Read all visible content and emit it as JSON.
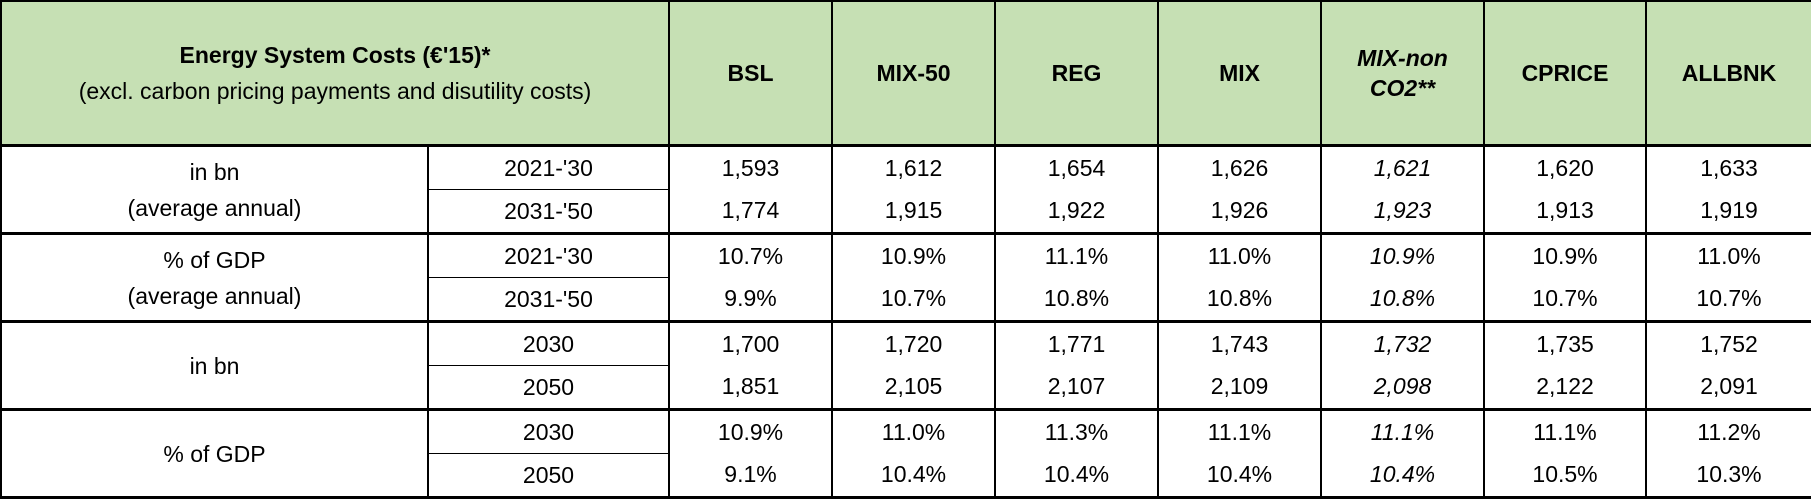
{
  "header": {
    "title_line1": "Energy System Costs (€'15)*",
    "title_line2": "(excl. carbon pricing payments  and disutility costs)",
    "scenarios": [
      "BSL",
      "MIX-50",
      "REG",
      "MIX",
      "MIX-nonCO2**",
      "CPRICE",
      "ALLBNK"
    ]
  },
  "groups": [
    {
      "label_line1": "in bn",
      "label_line2": "(average annual)",
      "rows": [
        {
          "period": "2021-'30",
          "values": [
            "1,593",
            "1,612",
            "1,654",
            "1,626",
            "1,621",
            "1,620",
            "1,633"
          ]
        },
        {
          "period": "2031-'50",
          "values": [
            "1,774",
            "1,915",
            "1,922",
            "1,926",
            "1,923",
            "1,913",
            "1,919"
          ]
        }
      ]
    },
    {
      "label_line1": "% of GDP",
      "label_line2": "(average annual)",
      "rows": [
        {
          "period": "2021-'30",
          "values": [
            "10.7%",
            "10.9%",
            "11.1%",
            "11.0%",
            "10.9%",
            "10.9%",
            "11.0%"
          ]
        },
        {
          "period": "2031-'50",
          "values": [
            "9.9%",
            "10.7%",
            "10.8%",
            "10.8%",
            "10.8%",
            "10.7%",
            "10.7%"
          ]
        }
      ]
    },
    {
      "label_line1": "in bn",
      "label_line2": "",
      "rows": [
        {
          "period": "2030",
          "values": [
            "1,700",
            "1,720",
            "1,771",
            "1,743",
            "1,732",
            "1,735",
            "1,752"
          ]
        },
        {
          "period": "2050",
          "values": [
            "1,851",
            "2,105",
            "2,107",
            "2,109",
            "2,098",
            "2,122",
            "2,091"
          ]
        }
      ]
    },
    {
      "label_line1": "% of GDP",
      "label_line2": "",
      "rows": [
        {
          "period": "2030",
          "values": [
            "10.9%",
            "11.0%",
            "11.3%",
            "11.1%",
            "11.1%",
            "11.1%",
            "11.2%"
          ]
        },
        {
          "period": "2050",
          "values": [
            "9.1%",
            "10.4%",
            "10.4%",
            "10.4%",
            "10.4%",
            "10.5%",
            "10.3%"
          ]
        }
      ]
    }
  ],
  "italic_column": "MIX-nonCO2**",
  "colors": {
    "header_bg": "#c6e0b4",
    "border": "#000000"
  }
}
